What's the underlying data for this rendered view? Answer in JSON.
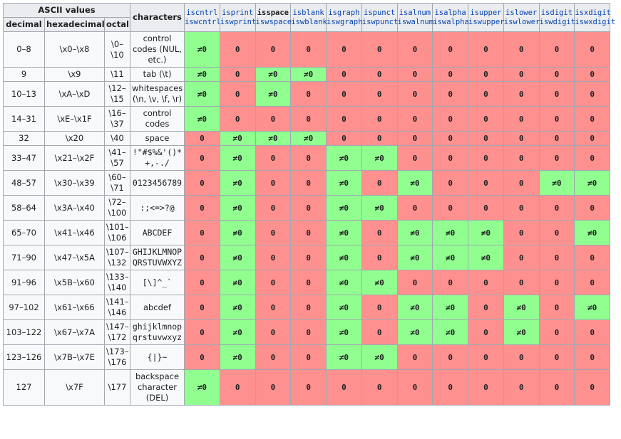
{
  "table": {
    "header": {
      "ascii": "ASCII values",
      "decimal": "decimal",
      "hexadecimal": "hexadecimal",
      "octal": "octal",
      "characters": "characters"
    },
    "functions": [
      {
        "narrow": "iscntrl",
        "wide": "iswcntrl"
      },
      {
        "narrow": "isprint",
        "wide": "iswprint"
      },
      {
        "narrow": "isspace",
        "wide": "iswspace"
      },
      {
        "narrow": "isblank",
        "wide": "iswblank"
      },
      {
        "narrow": "isgraph",
        "wide": "iswgraph"
      },
      {
        "narrow": "ispunct",
        "wide": "iswpunct"
      },
      {
        "narrow": "isalnum",
        "wide": "iswalnum"
      },
      {
        "narrow": "isalpha",
        "wide": "iswalpha"
      },
      {
        "narrow": "isupper",
        "wide": "iswupper"
      },
      {
        "narrow": "islower",
        "wide": "iswlower"
      },
      {
        "narrow": "isdigit",
        "wide": "iswdigit"
      },
      {
        "narrow": "isxdigit",
        "wide": "iswxdigit"
      }
    ],
    "rows": [
      {
        "decimal": "0–8",
        "hex": "\\x0–\\x8",
        "octal": "\\0–\\10",
        "characters": "control codes (NUL, etc.)",
        "cells": [
          "≠0",
          "0",
          "0",
          "0",
          "0",
          "0",
          "0",
          "0",
          "0",
          "0",
          "0",
          "0"
        ]
      },
      {
        "decimal": "9",
        "hex": "\\x9",
        "octal": "\\11",
        "characters": "tab (\\t)",
        "cells": [
          "≠0",
          "0",
          "≠0",
          "≠0",
          "0",
          "0",
          "0",
          "0",
          "0",
          "0",
          "0",
          "0"
        ]
      },
      {
        "decimal": "10–13",
        "hex": "\\xA–\\xD",
        "octal": "\\12–\\15",
        "characters": "whitespaces (\\n, \\v, \\f, \\r)",
        "cells": [
          "≠0",
          "0",
          "≠0",
          "0",
          "0",
          "0",
          "0",
          "0",
          "0",
          "0",
          "0",
          "0"
        ]
      },
      {
        "decimal": "14–31",
        "hex": "\\xE–\\x1F",
        "octal": "\\16–\\37",
        "characters": "control codes",
        "cells": [
          "≠0",
          "0",
          "0",
          "0",
          "0",
          "0",
          "0",
          "0",
          "0",
          "0",
          "0",
          "0"
        ]
      },
      {
        "decimal": "32",
        "hex": "\\x20",
        "octal": "\\40",
        "characters": "space",
        "cells": [
          "0",
          "≠0",
          "≠0",
          "≠0",
          "0",
          "0",
          "0",
          "0",
          "0",
          "0",
          "0",
          "0"
        ]
      },
      {
        "decimal": "33–47",
        "hex": "\\x21–\\x2F",
        "octal": "\\41–\\57",
        "characters": "!\"#$%&'()*+,-./",
        "cells": [
          "0",
          "≠0",
          "0",
          "0",
          "≠0",
          "≠0",
          "0",
          "0",
          "0",
          "0",
          "0",
          "0"
        ]
      },
      {
        "decimal": "48–57",
        "hex": "\\x30–\\x39",
        "octal": "\\60–\\71",
        "characters": "0123456789",
        "cells": [
          "0",
          "≠0",
          "0",
          "0",
          "≠0",
          "0",
          "≠0",
          "0",
          "0",
          "0",
          "≠0",
          "≠0"
        ]
      },
      {
        "decimal": "58–64",
        "hex": "\\x3A–\\x40",
        "octal": "\\72–\\100",
        "characters": ":;<=>?@",
        "cells": [
          "0",
          "≠0",
          "0",
          "0",
          "≠0",
          "≠0",
          "0",
          "0",
          "0",
          "0",
          "0",
          "0"
        ]
      },
      {
        "decimal": "65–70",
        "hex": "\\x41–\\x46",
        "octal": "\\101–\\106",
        "characters": "ABCDEF",
        "cells": [
          "0",
          "≠0",
          "0",
          "0",
          "≠0",
          "0",
          "≠0",
          "≠0",
          "≠0",
          "0",
          "0",
          "≠0"
        ]
      },
      {
        "decimal": "71–90",
        "hex": "\\x47–\\x5A",
        "octal": "\\107–\\132",
        "characters": "GHIJKLMNOPQRSTUVWXYZ",
        "cells": [
          "0",
          "≠0",
          "0",
          "0",
          "≠0",
          "0",
          "≠0",
          "≠0",
          "≠0",
          "0",
          "0",
          "0"
        ]
      },
      {
        "decimal": "91–96",
        "hex": "\\x5B–\\x60",
        "octal": "\\133–\\140",
        "characters": "[\\]^_`",
        "cells": [
          "0",
          "≠0",
          "0",
          "0",
          "≠0",
          "≠0",
          "0",
          "0",
          "0",
          "0",
          "0",
          "0"
        ]
      },
      {
        "decimal": "97–102",
        "hex": "\\x61–\\x66",
        "octal": "\\141–\\146",
        "characters": "abcdef",
        "cells": [
          "0",
          "≠0",
          "0",
          "0",
          "≠0",
          "0",
          "≠0",
          "≠0",
          "0",
          "≠0",
          "0",
          "≠0"
        ]
      },
      {
        "decimal": "103–122",
        "hex": "\\x67–\\x7A",
        "octal": "\\147–\\172",
        "characters": "ghijklmnopqrstuvwxyz",
        "cells": [
          "0",
          "≠0",
          "0",
          "0",
          "≠0",
          "0",
          "≠0",
          "≠0",
          "0",
          "≠0",
          "0",
          "0"
        ]
      },
      {
        "decimal": "123–126",
        "hex": "\\x7B–\\x7E",
        "octal": "\\173–\\176",
        "characters": "{|}~",
        "cells": [
          "0",
          "≠0",
          "0",
          "0",
          "≠0",
          "≠0",
          "0",
          "0",
          "0",
          "0",
          "0",
          "0"
        ]
      },
      {
        "decimal": "127",
        "hex": "\\x7F",
        "octal": "\\177",
        "characters": "backspace character (DEL)",
        "cells": [
          "≠0",
          "0",
          "0",
          "0",
          "0",
          "0",
          "0",
          "0",
          "0",
          "0",
          "0",
          "0"
        ]
      }
    ]
  }
}
